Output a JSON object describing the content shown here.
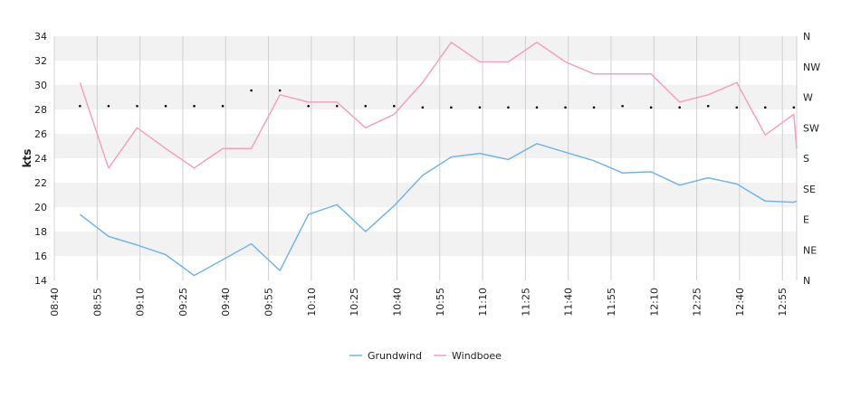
{
  "chart_data": {
    "type": "line",
    "ylabel": "kts",
    "ylim": [
      14,
      34
    ],
    "y_ticks": [
      "14",
      "16",
      "18",
      "20",
      "22",
      "24",
      "26",
      "28",
      "30",
      "32",
      "34"
    ],
    "x_ticks": [
      "08:40",
      "08:55",
      "09:10",
      "09:25",
      "09:40",
      "09:55",
      "10:10",
      "10:25",
      "10:40",
      "10:55",
      "11:10",
      "11:25",
      "11:40",
      "11:55",
      "12:10",
      "12:25",
      "12:40",
      "12:55"
    ],
    "x_range": [
      "08:40",
      "13:00"
    ],
    "direction_ticks": [
      "N",
      "NW",
      "W",
      "SW",
      "S",
      "SE",
      "E",
      "NE",
      "N"
    ],
    "grid": "horizontal bands and vertical lines",
    "legend_position": "bottom-center",
    "x": [
      "08:49",
      "08:59",
      "09:09",
      "09:19",
      "09:29",
      "09:39",
      "09:49",
      "09:59",
      "10:09",
      "10:19",
      "10:29",
      "10:39",
      "10:49",
      "10:59",
      "11:09",
      "11:19",
      "11:29",
      "11:39",
      "11:49",
      "11:59",
      "12:09",
      "12:19",
      "12:29",
      "12:39",
      "12:49",
      "12:59",
      "13:00"
    ],
    "series": [
      {
        "name": "Grundwind",
        "color": "#74b4ea",
        "values": [
          19.4,
          17.6,
          16.9,
          16.1,
          14.4,
          15.7,
          17.0,
          14.8,
          19.4,
          20.2,
          18.0,
          20.1,
          22.6,
          24.1,
          24.4,
          23.9,
          25.2,
          24.5,
          23.8,
          22.8,
          22.9,
          21.8,
          22.4,
          21.9,
          20.5,
          20.4,
          20.5
        ]
      },
      {
        "name": "Windboee",
        "color": "#f59fc3",
        "values": [
          30.2,
          23.2,
          26.5,
          24.8,
          23.2,
          24.8,
          24.8,
          29.2,
          28.6,
          28.6,
          26.5,
          27.6,
          30.2,
          33.5,
          31.9,
          31.9,
          33.5,
          31.9,
          30.9,
          30.9,
          30.9,
          28.6,
          29.2,
          30.2,
          25.9,
          27.6,
          24.8
        ]
      }
    ],
    "direction_markers": {
      "color": "#000000",
      "x": [
        "08:49",
        "08:59",
        "09:09",
        "09:19",
        "09:29",
        "09:39",
        "09:49",
        "09:59",
        "10:09",
        "10:19",
        "10:29",
        "10:39",
        "10:49",
        "10:59",
        "11:09",
        "11:19",
        "11:29",
        "11:39",
        "11:49",
        "11:59",
        "12:09",
        "12:19",
        "12:29",
        "12:39",
        "12:49",
        "12:59"
      ],
      "values_deg": [
        257,
        257,
        257,
        257,
        257,
        257,
        280,
        280,
        257,
        257,
        257,
        257,
        255,
        255,
        255,
        255,
        255,
        255,
        255,
        257,
        255,
        255,
        257,
        255,
        255,
        255
      ]
    }
  }
}
